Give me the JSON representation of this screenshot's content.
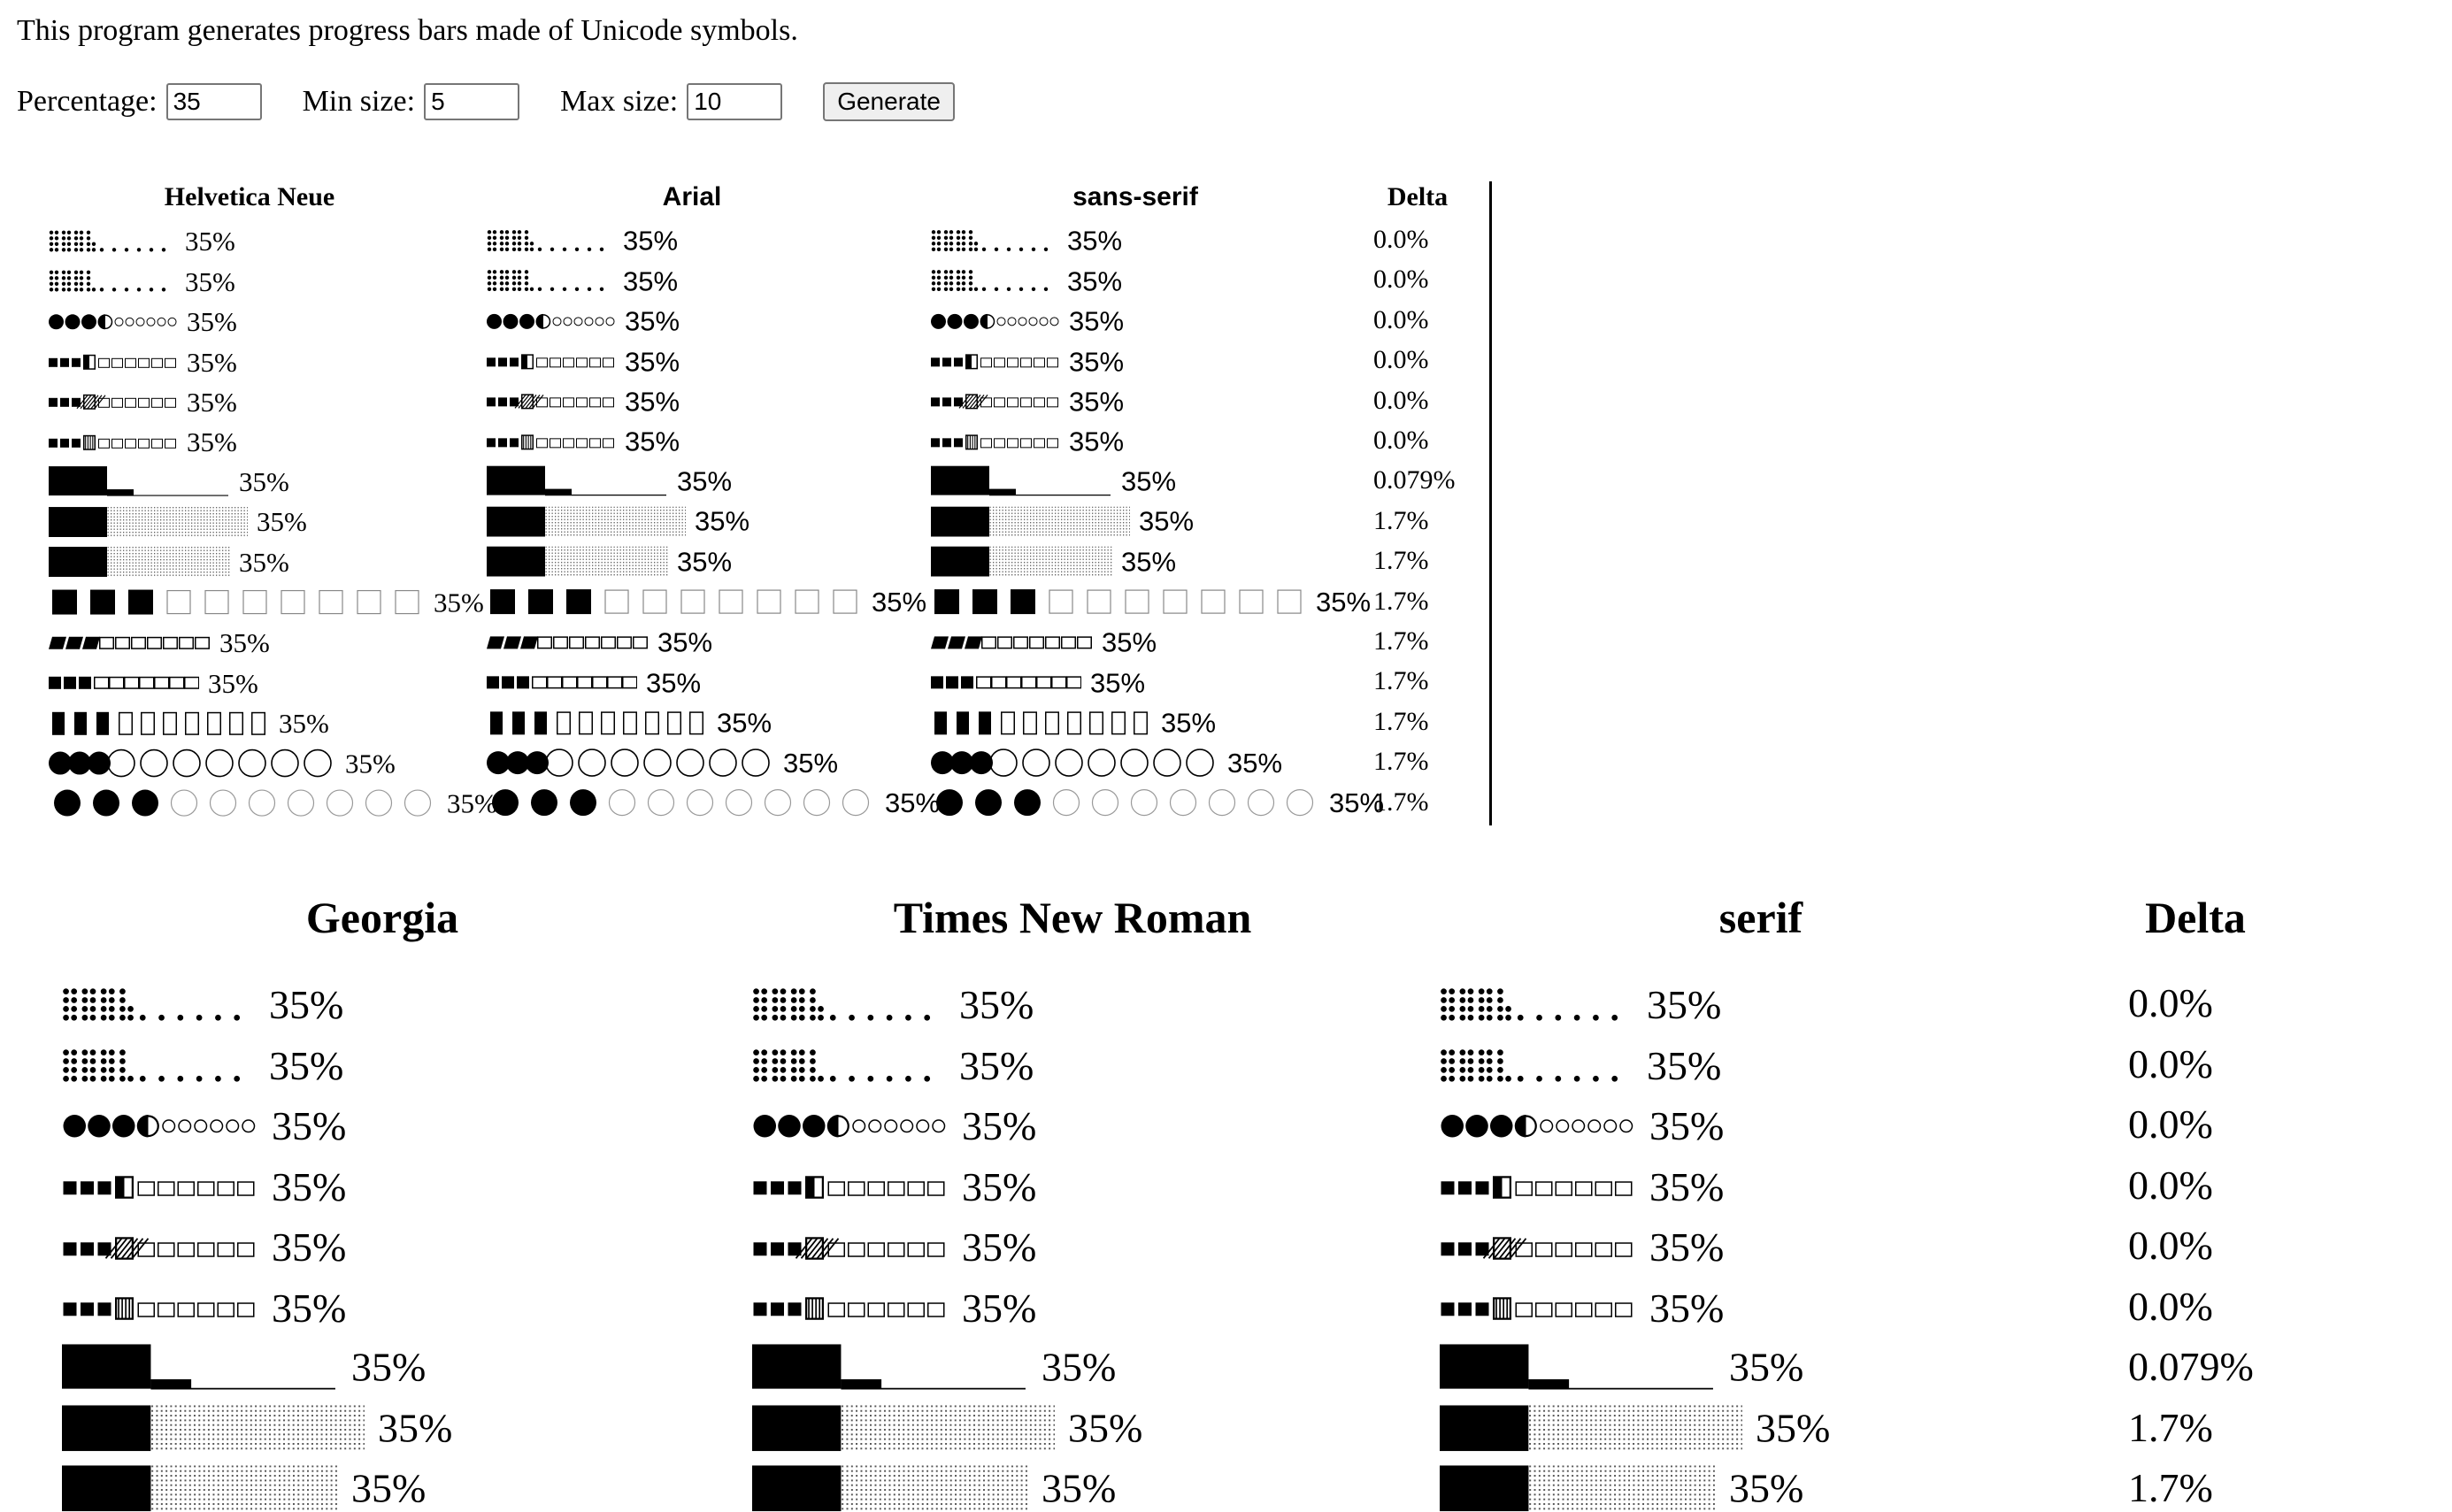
{
  "intro_text": "This program generates progress bars made of Unicode symbols.",
  "controls": {
    "percentage_label": "Percentage:",
    "percentage_value": "35",
    "min_label": "Min size:",
    "min_value": "5",
    "max_label": "Max size:",
    "max_value": "10",
    "generate_label": "Generate"
  },
  "progress_fraction": 0.35,
  "bar_styles": [
    {
      "icon": "braille-dots-bar",
      "size": 10
    },
    {
      "icon": "braille-dots-bar",
      "size": 10
    },
    {
      "icon": "circle-bar",
      "size": 10
    },
    {
      "icon": "half-filled-square-bar",
      "size": 10
    },
    {
      "icon": "hatched-square-bar",
      "size": 10
    },
    {
      "icon": "vertical-hatched-square-bar",
      "size": 10
    },
    {
      "icon": "block-bar",
      "size": 10
    },
    {
      "icon": "shaded-block-bar",
      "size": 10
    },
    {
      "icon": "shaded-block-bar",
      "size": 10
    },
    {
      "icon": "large-square-bar",
      "size": 10
    },
    {
      "icon": "parallelogram-bar",
      "size": 10
    },
    {
      "icon": "small-square-bar",
      "size": 10
    },
    {
      "icon": "tall-rectangle-bar",
      "size": 10
    },
    {
      "icon": "large-circle-bar",
      "size": 10
    },
    {
      "icon": "dot-circle-bar",
      "size": 10
    }
  ],
  "tables": [
    {
      "columns": [
        {
          "header": "Helvetica Neue",
          "labels": [
            "35%",
            "35%",
            "35%",
            "35%",
            "35%",
            "35%",
            "35%",
            "35%",
            "35%",
            "35%",
            "35%",
            "35%",
            "35%",
            "35%",
            "35%"
          ]
        },
        {
          "header": "Arial",
          "labels": [
            "35%",
            "35%",
            "35%",
            "35%",
            "35%",
            "35%",
            "35%",
            "35%",
            "35%",
            "35%",
            "35%",
            "35%",
            "35%",
            "35%",
            "35%"
          ]
        },
        {
          "header": "sans-serif",
          "labels": [
            "35%",
            "35%",
            "35%",
            "35%",
            "35%",
            "35%",
            "35%",
            "35%",
            "35%",
            "35%",
            "35%",
            "35%",
            "35%",
            "35%",
            "35%"
          ]
        }
      ],
      "delta_header": "Delta",
      "deltas": [
        "0.0%",
        "0.0%",
        "0.0%",
        "0.0%",
        "0.0%",
        "0.0%",
        "0.079%",
        "1.7%",
        "1.7%",
        "1.7%",
        "1.7%",
        "1.7%",
        "1.7%",
        "1.7%",
        "1.7%"
      ]
    },
    {
      "columns": [
        {
          "header": "Georgia",
          "labels": [
            "35%",
            "35%",
            "35%",
            "35%",
            "35%",
            "35%",
            "35%",
            "35%",
            "35%"
          ]
        },
        {
          "header": "Times New Roman",
          "labels": [
            "35%",
            "35%",
            "35%",
            "35%",
            "35%",
            "35%",
            "35%",
            "35%",
            "35%"
          ]
        },
        {
          "header": "serif",
          "labels": [
            "35%",
            "35%",
            "35%",
            "35%",
            "35%",
            "35%",
            "35%",
            "35%",
            "35%"
          ]
        }
      ],
      "delta_header": "Delta",
      "deltas": [
        "0.0%",
        "0.0%",
        "0.0%",
        "0.0%",
        "0.0%",
        "0.0%",
        "0.079%",
        "1.7%",
        "1.7%"
      ]
    }
  ]
}
